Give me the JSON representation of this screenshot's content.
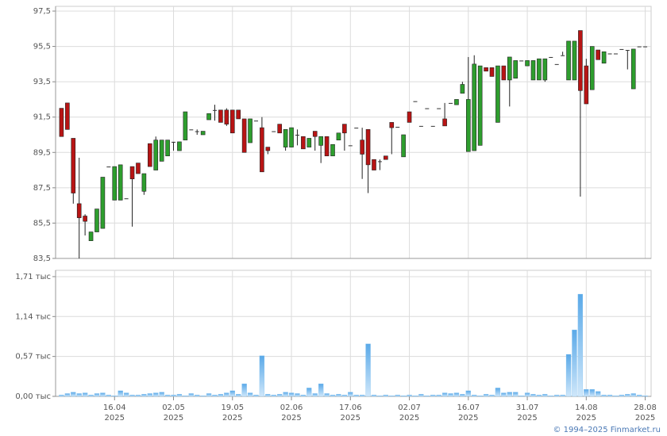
{
  "chart_data": [
    {
      "type": "candlestick",
      "ylim": [
        83.5,
        97.5
      ],
      "yticks": [
        {
          "value": 83.5,
          "label": "83,5"
        },
        {
          "value": 85.5,
          "label": "85,5"
        },
        {
          "value": 87.5,
          "label": "87,5"
        },
        {
          "value": 89.5,
          "label": "89,5"
        },
        {
          "value": 91.5,
          "label": "91,5"
        },
        {
          "value": 93.5,
          "label": "93,5"
        },
        {
          "value": 95.5,
          "label": "95,5"
        },
        {
          "value": 97.5,
          "label": "97,5"
        }
      ],
      "up_color": "#2e9e2e",
      "down_color": "#b81414",
      "grid": true,
      "open": [
        92.0,
        92.3,
        90.3,
        86.6,
        85.9,
        84.5,
        85.0,
        85.2,
        88.7,
        86.8,
        86.8,
        86.9,
        88.7,
        88.9,
        87.3,
        90.0,
        88.5,
        89.0,
        89.3,
        90.1,
        89.6,
        90.2,
        90.8,
        90.7,
        90.5,
        91.35,
        91.9,
        91.9,
        91.9,
        91.9,
        91.9,
        91.4,
        90.05,
        91.3,
        90.9,
        89.8,
        90.7,
        91.1,
        89.8,
        89.8,
        90.5,
        90.4,
        89.8,
        90.7,
        89.9,
        90.4,
        89.3,
        90.2,
        91.1,
        89.9,
        90.9,
        90.2,
        90.8,
        89.1,
        89.0,
        89.3,
        91.2,
        90.95,
        89.25,
        91.8,
        92.4,
        91.0,
        92.0,
        91.0,
        92.0,
        91.4,
        92.3,
        92.2,
        92.85,
        89.55,
        89.6,
        89.9,
        94.3,
        94.3,
        91.2,
        94.4,
        93.6,
        93.7,
        94.7,
        94.4,
        93.6,
        93.6,
        93.6,
        94.9,
        94.5,
        95.0,
        93.6,
        93.6,
        96.4,
        94.4,
        93.05,
        95.3,
        94.55,
        95.1,
        95.1,
        95.35,
        95.3,
        93.1,
        95.5,
        95.5
      ],
      "high": [
        92.0,
        92.3,
        90.3,
        89.2,
        86.0,
        85.0,
        86.3,
        88.1,
        88.7,
        88.7,
        88.8,
        86.9,
        88.7,
        88.9,
        88.3,
        90.0,
        90.4,
        90.2,
        90.2,
        90.1,
        90.1,
        91.8,
        90.8,
        90.8,
        90.7,
        91.7,
        92.2,
        91.9,
        92.0,
        91.9,
        91.9,
        91.4,
        91.4,
        91.3,
        91.5,
        89.8,
        90.7,
        91.1,
        90.8,
        90.9,
        90.8,
        90.4,
        90.3,
        90.7,
        90.4,
        90.4,
        89.95,
        90.6,
        91.1,
        89.9,
        90.9,
        90.9,
        90.8,
        89.1,
        89.1,
        89.3,
        91.2,
        90.95,
        90.5,
        91.8,
        92.4,
        91.0,
        92.0,
        91.0,
        92.0,
        92.3,
        92.3,
        92.5,
        93.5,
        94.9,
        95.0,
        94.4,
        94.3,
        94.3,
        94.4,
        94.4,
        94.9,
        94.7,
        94.7,
        94.7,
        94.7,
        94.8,
        94.8,
        94.9,
        94.5,
        95.2,
        95.8,
        95.8,
        96.4,
        94.8,
        95.5,
        95.3,
        95.2,
        95.1,
        95.1,
        95.35,
        95.3,
        95.35,
        95.5,
        95.5
      ],
      "low": [
        90.4,
        90.8,
        86.6,
        83.5,
        84.8,
        84.5,
        85.0,
        85.2,
        88.7,
        86.8,
        86.8,
        86.9,
        85.3,
        88.3,
        87.1,
        88.7,
        88.5,
        89.0,
        89.3,
        89.6,
        89.6,
        90.2,
        90.8,
        90.5,
        90.5,
        91.35,
        91.3,
        91.2,
        91.0,
        90.6,
        91.4,
        89.5,
        90.05,
        91.3,
        88.4,
        89.4,
        90.7,
        90.6,
        89.6,
        89.8,
        89.9,
        89.7,
        89.8,
        89.6,
        88.9,
        89.3,
        89.3,
        90.2,
        89.6,
        89.9,
        90.9,
        88.0,
        87.2,
        88.5,
        88.5,
        89.1,
        89.4,
        90.95,
        89.25,
        91.2,
        92.4,
        91.0,
        92.0,
        91.0,
        92.0,
        91.0,
        92.3,
        92.2,
        92.85,
        89.55,
        89.6,
        89.9,
        94.1,
        93.8,
        91.2,
        93.6,
        92.1,
        93.7,
        94.7,
        94.4,
        93.6,
        93.6,
        93.5,
        94.9,
        94.5,
        95.0,
        93.6,
        93.6,
        87.0,
        92.25,
        93.05,
        94.75,
        94.55,
        95.1,
        95.1,
        95.35,
        94.2,
        93.1,
        95.5,
        95.5
      ],
      "close": [
        90.4,
        90.8,
        87.2,
        85.8,
        85.6,
        85.0,
        86.3,
        88.1,
        88.7,
        88.7,
        88.8,
        86.9,
        88.0,
        88.3,
        88.3,
        88.7,
        90.2,
        90.2,
        90.2,
        90.1,
        90.1,
        91.8,
        90.8,
        90.7,
        90.7,
        91.7,
        91.9,
        91.2,
        91.1,
        90.6,
        91.4,
        89.5,
        91.4,
        91.3,
        88.4,
        89.6,
        90.7,
        90.6,
        90.8,
        90.9,
        90.5,
        89.7,
        90.3,
        90.4,
        90.4,
        89.3,
        89.95,
        90.6,
        90.6,
        89.9,
        90.9,
        89.4,
        88.8,
        88.5,
        89.0,
        89.1,
        90.9,
        90.95,
        90.5,
        91.2,
        92.4,
        91.0,
        92.0,
        91.0,
        92.0,
        91.0,
        92.3,
        92.5,
        93.35,
        92.5,
        94.5,
        94.4,
        94.1,
        93.8,
        94.4,
        93.6,
        94.9,
        94.7,
        94.7,
        94.7,
        94.7,
        94.8,
        94.8,
        94.9,
        94.5,
        95.0,
        95.8,
        95.8,
        93.0,
        92.25,
        95.5,
        94.75,
        95.2,
        95.1,
        95.1,
        95.35,
        95.3,
        95.35,
        95.5,
        95.5
      ]
    },
    {
      "type": "bar",
      "ylim": [
        0,
        1800
      ],
      "yticks": [
        {
          "value": 0,
          "label": "0,00 тыс"
        },
        {
          "value": 570,
          "label": "0,57 тыс"
        },
        {
          "value": 1140,
          "label": "1,14 тыс"
        },
        {
          "value": 1710,
          "label": "1,71 тыс"
        }
      ],
      "color": "#7dbff0",
      "grid": true,
      "xticks": [
        {
          "value": 9,
          "label": [
            "16.04",
            "2025"
          ]
        },
        {
          "value": 19,
          "label": [
            "02.05",
            "2025"
          ]
        },
        {
          "value": 29,
          "label": [
            "19.05",
            "2025"
          ]
        },
        {
          "value": 39,
          "label": [
            "02.06",
            "2025"
          ]
        },
        {
          "value": 49,
          "label": [
            "17.06",
            "2025"
          ]
        },
        {
          "value": 59,
          "label": [
            "02.07",
            "2025"
          ]
        },
        {
          "value": 69,
          "label": [
            "16.07",
            "2025"
          ]
        },
        {
          "value": 79,
          "label": [
            "31.07",
            "2025"
          ]
        },
        {
          "value": 89,
          "label": [
            "14.08",
            "2025"
          ]
        },
        {
          "value": 99,
          "label": [
            "28.08",
            "2025"
          ]
        }
      ],
      "values": [
        20,
        40,
        60,
        40,
        50,
        20,
        40,
        50,
        20,
        10,
        80,
        50,
        20,
        20,
        30,
        40,
        50,
        60,
        20,
        20,
        30,
        10,
        40,
        20,
        10,
        40,
        20,
        30,
        50,
        80,
        30,
        180,
        50,
        20,
        580,
        30,
        20,
        30,
        60,
        50,
        40,
        20,
        120,
        40,
        180,
        40,
        20,
        30,
        20,
        60,
        20,
        20,
        750,
        20,
        10,
        20,
        10,
        20,
        10,
        20,
        10,
        30,
        10,
        20,
        20,
        50,
        40,
        50,
        30,
        80,
        20,
        10,
        30,
        20,
        120,
        50,
        60,
        60,
        10,
        50,
        30,
        20,
        30,
        10,
        20,
        20,
        600,
        950,
        1460,
        100,
        100,
        70,
        20,
        20,
        10,
        20,
        30,
        40,
        20,
        10
      ]
    }
  ],
  "footer": "© 1994–2025 Finmarket.ru"
}
